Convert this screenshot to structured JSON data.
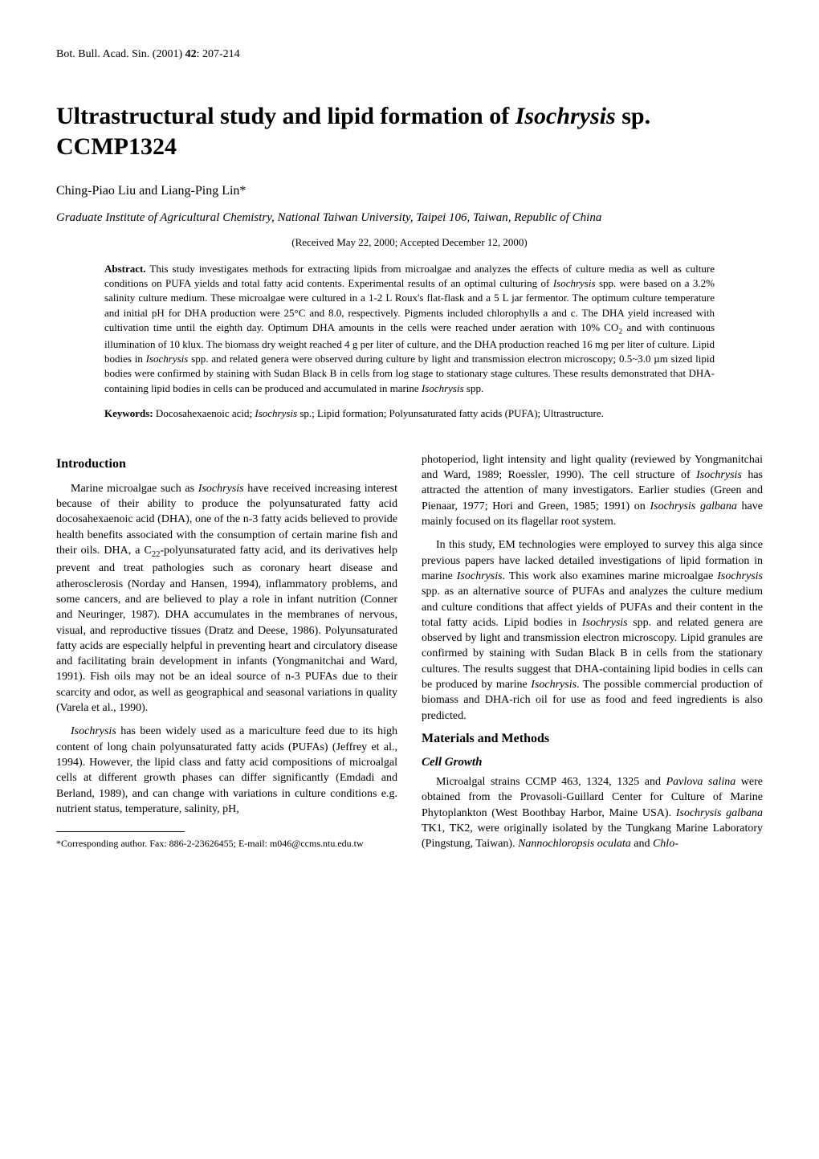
{
  "header": {
    "journal": "Bot. Bull. Acad. Sin. (2001) ",
    "volume": "42",
    "pages": ": 207-214"
  },
  "title": {
    "pre": "Ultrastructural study and lipid formation of ",
    "species": "Isochrysis",
    "post": " sp. CCMP1324"
  },
  "authors": "Ching-Piao Liu and Liang-Ping Lin*",
  "affiliation": "Graduate Institute of Agricultural Chemistry, National Taiwan University, Taipei 106, Taiwan, Republic of China",
  "dates": "(Received May 22, 2000; Accepted December 12, 2000)",
  "abstract": {
    "label": "Abstract.",
    "text_1": " This study investigates methods for extracting lipids from microalgae and analyzes the effects of culture media as well as culture conditions on PUFA yields and total fatty acid contents. Experimental results of an optimal culturing of ",
    "sp1": "Isochrysis",
    "text_2": " spp. were based on a 3.2% salinity culture medium. These microalgae were cultured in a 1-2 L Roux's flat-flask and a 5 L jar fermentor. The optimum culture temperature and initial pH for DHA production were 25°C and 8.0, respectively. Pigments included chlorophylls a and c. The DHA yield increased with cultivation time until the eighth day. Optimum DHA amounts in the cells were reached under aeration with 10% CO",
    "sub1": "2",
    "text_3": " and with continuous illumination of 10 klux. The biomass dry weight reached 4 g per liter of culture, and the DHA production reached 16 mg per liter of culture. Lipid bodies in ",
    "sp2": "Isochrysis",
    "text_4": " spp. and related genera were observed during culture by light and transmission electron microscopy; 0.5~3.0 µm sized lipid bodies were confirmed by staining with Sudan Black B in cells from log stage to stationary stage cultures. These results demonstrated that DHA-containing lipid bodies in cells can be produced and accumulated in marine ",
    "sp3": "Isochrysis",
    "text_5": " spp."
  },
  "keywords": {
    "label": "Keywords:",
    "text_1": " Docosahexaenoic acid; ",
    "sp1": "Isochrysis",
    "text_2": " sp.; Lipid formation; Polyunsaturated fatty acids (PUFA); Ultrastructure."
  },
  "sections": {
    "introduction": {
      "heading": "Introduction",
      "p1_1": "Marine microalgae such as ",
      "p1_sp1": "Isochrysis",
      "p1_2": " have received increasing interest because of their ability to produce the polyunsaturated fatty acid docosahexaenoic acid (DHA), one of the n-3 fatty acids believed to provide health benefits associated with the consumption of certain marine fish and their oils. DHA, a C",
      "p1_sub1": "22",
      "p1_3": "-polyunsaturated fatty acid, and its derivatives help prevent and treat pathologies such as coronary heart disease and atherosclerosis (Norday and Hansen, 1994), inflammatory problems, and some cancers, and are believed to play a role in infant nutrition (Conner and Neuringer, 1987). DHA accumulates in the membranes of nervous, visual, and reproductive tissues (Dratz and Deese, 1986). Polyunsaturated fatty acids are especially helpful in preventing heart and circulatory disease and facilitating brain development in infants (Yongmanitchai and Ward, 1991). Fish oils may not be an ideal source of n-3 PUFAs due to their scarcity and odor, as well as geographical and seasonal variations in quality (Varela et al., 1990).",
      "p2_sp1": "Isochrysis",
      "p2_1": " has been widely used as a mariculture feed due to its high content of long chain polyunsaturated fatty acids (PUFAs) (Jeffrey et al., 1994). However, the lipid class and fatty acid compositions of microalgal cells at different growth phases can differ significantly (Emdadi and Berland, 1989), and can change with variations in culture conditions e.g. nutrient status, temperature, salinity, pH,",
      "p2_cont_1": "photoperiod, light intensity and light quality (reviewed by Yongmanitchai and Ward, 1989; Roessler, 1990). The cell structure of ",
      "p2_cont_sp1": "Isochrysis",
      "p2_cont_2": " has attracted the attention of many investigators. Earlier studies (Green and Pienaar, 1977; Hori and Green, 1985; 1991) on ",
      "p2_cont_sp2": "Isochrysis galbana",
      "p2_cont_3": " have mainly focused on its flagellar root system.",
      "p3_1": "In this study, EM technologies were employed to survey this alga since previous papers have lacked detailed investigations of lipid formation in marine ",
      "p3_sp1": "Isochrysis",
      "p3_2": ". This work also examines marine microalgae ",
      "p3_sp2": "Isochrysis",
      "p3_3": " spp. as an alternative source of PUFAs and analyzes the culture medium and culture conditions that affect yields of PUFAs and their content in the total fatty acids. Lipid bodies in ",
      "p3_sp3": "Isochrysis",
      "p3_4": " spp. and related genera are observed by light and transmission electron microscopy. Lipid granules are confirmed by staining with Sudan Black B in cells from the stationary cultures. The results suggest that DHA-containing lipid bodies in cells can be produced by marine ",
      "p3_sp4": "Isochrysis",
      "p3_5": ". The possible commercial production of biomass and DHA-rich oil for use as food and feed ingredients is also predicted."
    },
    "methods": {
      "heading": "Materials and Methods",
      "sub1": "Cell Growth",
      "p1_1": "Microalgal strains CCMP 463, 1324, 1325 and ",
      "p1_sp1": "Pavlova salina",
      "p1_2": " were obtained from the Provasoli-Guillard Center for Culture of Marine Phytoplankton (West Boothbay Harbor, Maine USA). ",
      "p1_sp2": "Isochrysis galbana",
      "p1_3": " TK1, TK2, were originally isolated by the Tungkang Marine Laboratory (Pingstung, Taiwan). ",
      "p1_sp3": "Nannochloropsis oculata",
      "p1_4": " and ",
      "p1_sp4": "Chlo-"
    }
  },
  "footnote": {
    "text": "*Corresponding author. Fax: 886-2-23626455; E-mail: m046@ccms.ntu.edu.tw"
  }
}
